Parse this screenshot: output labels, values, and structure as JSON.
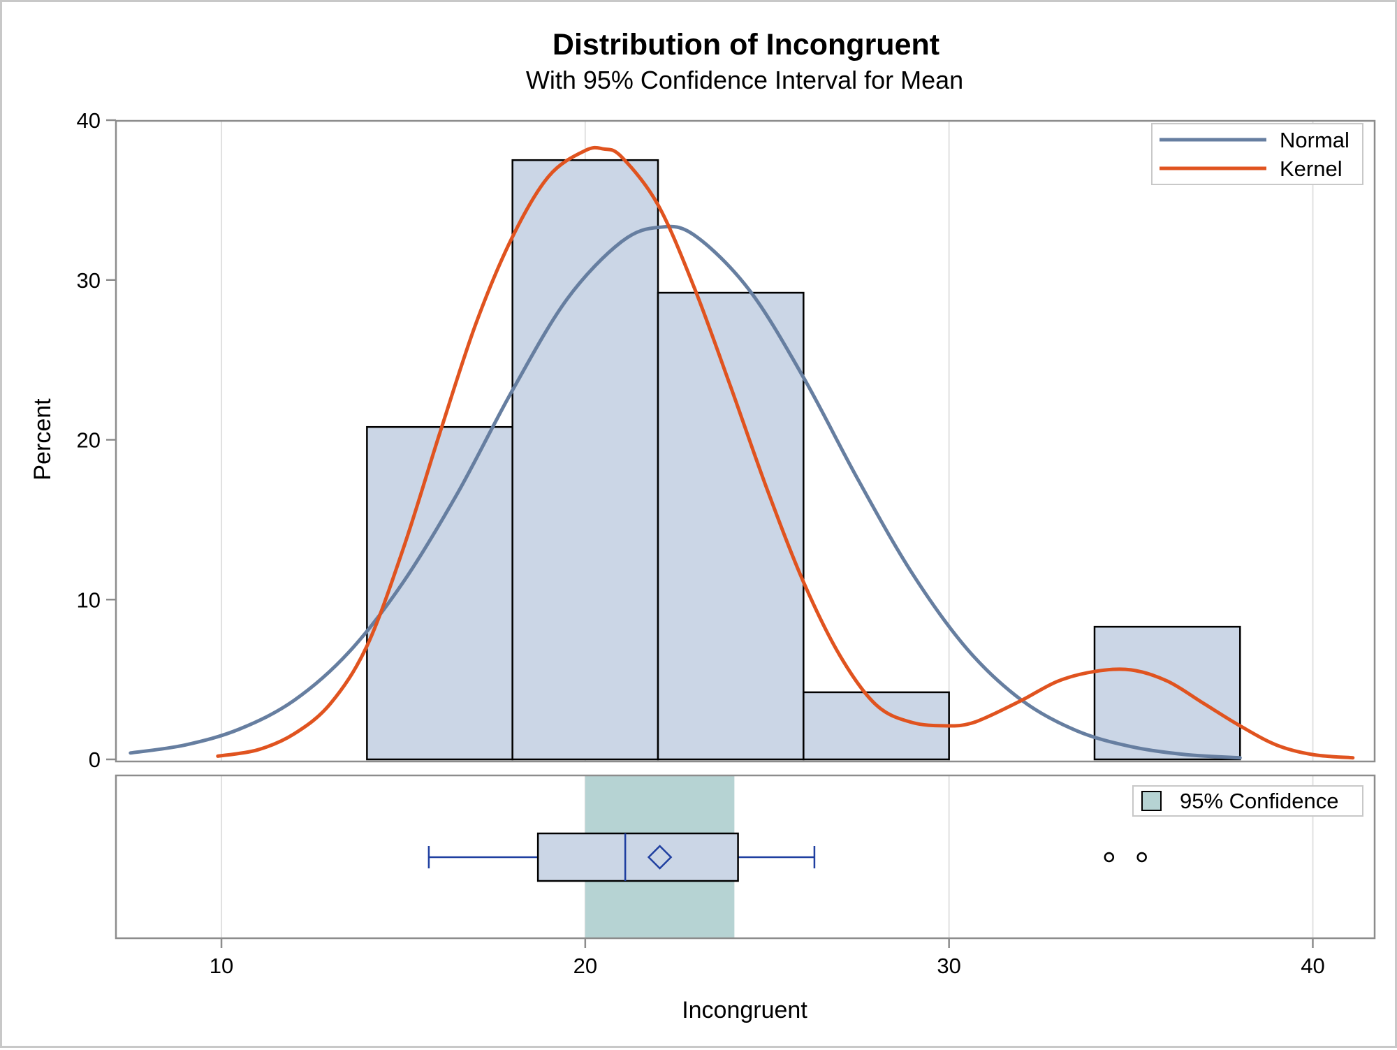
{
  "chart_data": {
    "type": "bar",
    "title": "Distribution of Incongruent",
    "subtitle": "With 95% Confidence Interval for Mean",
    "xlabel": "Incongruent",
    "ylabel": "Percent",
    "xlim": [
      7.1,
      41.7
    ],
    "ylim": [
      0,
      40
    ],
    "x_ticks": [
      10,
      20,
      30,
      40
    ],
    "y_ticks": [
      0,
      10,
      20,
      30,
      40
    ],
    "grid": "vertical",
    "histogram": {
      "bin_edges": [
        14,
        18,
        22,
        26,
        30,
        34,
        38
      ],
      "values": [
        20.8,
        37.5,
        29.2,
        4.2,
        0,
        8.3
      ]
    },
    "series": [
      {
        "name": "Normal",
        "color": "#667ea0",
        "x": [
          7.5,
          9,
          10.5,
          12,
          13.5,
          15,
          16.5,
          18,
          19.5,
          21,
          22.05,
          23,
          24.5,
          26,
          27.5,
          29,
          30.5,
          32,
          33.5,
          35,
          36.5,
          38
        ],
        "y": [
          0.4,
          0.9,
          1.9,
          3.7,
          6.7,
          11.1,
          16.7,
          23.1,
          28.8,
          32.4,
          33.3,
          32.8,
          29.4,
          23.9,
          17.5,
          11.6,
          6.9,
          3.7,
          1.8,
          0.8,
          0.3,
          0.1
        ]
      },
      {
        "name": "Kernel",
        "color": "#e0531f",
        "x": [
          9.9,
          11,
          12,
          13,
          14,
          15,
          16,
          17,
          18,
          19,
          20,
          20.5,
          21,
          22,
          23,
          24,
          25,
          26,
          27,
          28,
          29,
          30,
          30.5,
          31,
          32,
          33,
          34,
          35,
          36,
          37,
          38,
          39,
          40,
          41.1
        ],
        "y": [
          0.2,
          0.6,
          1.6,
          3.5,
          7.1,
          13.2,
          20.4,
          27.3,
          32.7,
          36.5,
          38.1,
          38.2,
          37.7,
          34.7,
          29.5,
          23.3,
          16.9,
          11.1,
          6.5,
          3.4,
          2.3,
          2.1,
          2.2,
          2.6,
          3.7,
          4.9,
          5.5,
          5.6,
          4.9,
          3.5,
          2.1,
          0.9,
          0.3,
          0.1
        ]
      }
    ],
    "boxplot": {
      "whisker_low": 15.7,
      "q1": 18.7,
      "median": 21.1,
      "mean": 22.05,
      "q3": 24.2,
      "whisker_high": 26.3,
      "outliers": [
        34.4,
        35.3
      ],
      "ci_mean": [
        20.0,
        24.1
      ],
      "color": "#1f3fa0"
    },
    "legends": {
      "curves": {
        "position": "top-right",
        "items": [
          "Normal",
          "Kernel"
        ]
      },
      "confidence": {
        "position": "top-right",
        "label": "95% Confidence",
        "color": "#b6d3d3"
      }
    },
    "bar_fill": "#cbd6e6",
    "bar_stroke": "#000000"
  }
}
